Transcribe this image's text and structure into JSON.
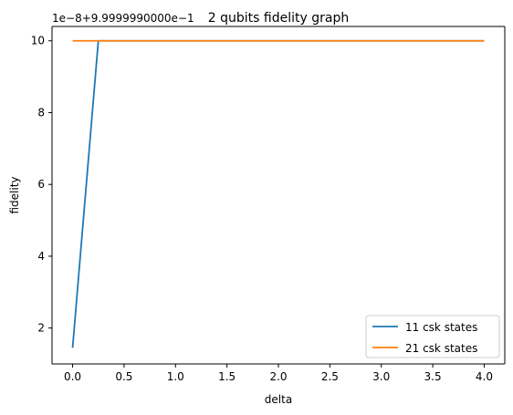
{
  "chart_data": {
    "type": "line",
    "title": "2 qubits fidelity graph",
    "xlabel": "delta",
    "ylabel": "fidelity",
    "offset_text": "1e−8+9.9999990000e−1",
    "xlim": [
      -0.2,
      4.2
    ],
    "ylim": [
      1.0,
      10.4
    ],
    "xticks": [
      0.0,
      0.5,
      1.0,
      1.5,
      2.0,
      2.5,
      3.0,
      3.5,
      4.0
    ],
    "xtick_labels": [
      "0.0",
      "0.5",
      "1.0",
      "1.5",
      "2.0",
      "2.5",
      "3.0",
      "3.5",
      "4.0"
    ],
    "yticks": [
      2,
      4,
      6,
      8,
      10
    ],
    "ytick_labels": [
      "2",
      "4",
      "6",
      "8",
      "10"
    ],
    "grid": false,
    "legend_position": "lower right",
    "series": [
      {
        "name": "11 csk states",
        "color": "#1f77b4",
        "x": [
          0.0,
          0.25,
          0.5,
          1.0,
          1.5,
          2.0,
          2.5,
          3.0,
          3.5,
          4.0
        ],
        "y": [
          1.45,
          10.0,
          10.0,
          10.0,
          10.0,
          10.0,
          10.0,
          10.0,
          10.0,
          10.0
        ]
      },
      {
        "name": "21 csk states",
        "color": "#ff7f0e",
        "x": [
          0.0,
          0.5,
          1.0,
          1.5,
          2.0,
          2.5,
          3.0,
          3.5,
          4.0
        ],
        "y": [
          10.0,
          10.0,
          10.0,
          10.0,
          10.0,
          10.0,
          10.0,
          10.0,
          10.0
        ]
      }
    ]
  }
}
